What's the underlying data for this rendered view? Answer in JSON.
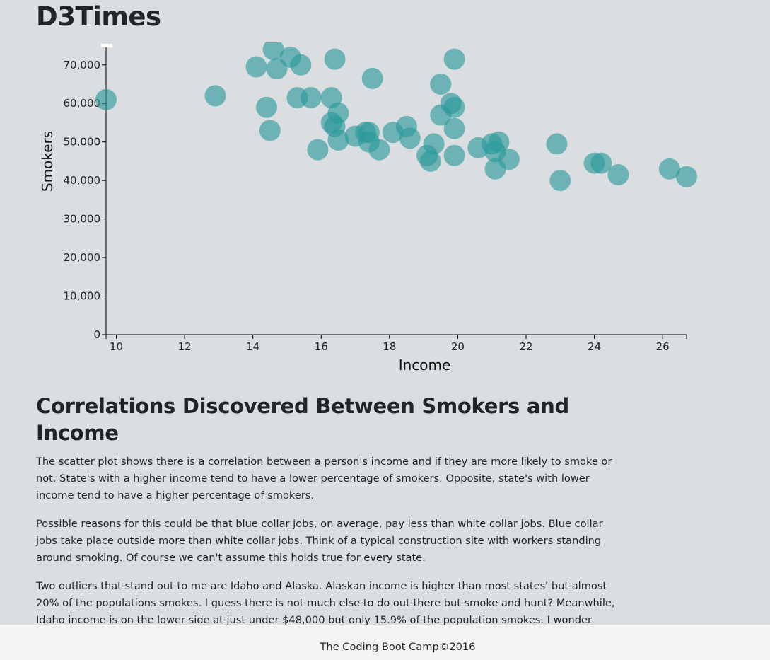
{
  "site": {
    "title": "D3Times"
  },
  "article": {
    "heading": "Correlations Discovered Between Smokers and Income",
    "paragraphs": [
      "The scatter plot shows there is a correlation between a person's income and if they are more likely to smoke or not. State's with a higher income tend to have a lower percentage of smokers. Opposite, state's with lower income tend to have a higher percentage of smokers.",
      "Possible reasons for this could be that blue collar jobs, on average, pay less than white collar jobs. Blue collar jobs take place outside more than white collar jobs. Think of a typical construction site with workers standing around smoking. Of course we can't assume this holds true for every state.",
      "Two outliers that stand out to me are Idaho and Alaska. Alaskan income is higher than most states' but almost 20% of the populations smokes. I guess there is not much else to do out there but smoke and hunt? Meanwhile, Idaho income is on the lower side at just under $48,000 but only 15.9% of the population smokes. I wonder why that is?"
    ]
  },
  "footer": {
    "text": "The Coding Boot Camp©2016"
  },
  "chart_data": {
    "type": "scatter",
    "xlabel": "Income",
    "ylabel": "Smokers",
    "xlim": [
      9.7,
      26.7
    ],
    "ylim": [
      0,
      74000
    ],
    "x_ticks": [
      10,
      12,
      14,
      16,
      18,
      20,
      22,
      24,
      26
    ],
    "y_ticks": [
      0,
      10000,
      20000,
      30000,
      40000,
      50000,
      60000,
      70000
    ],
    "x_tick_labels": [
      "10",
      "12",
      "14",
      "16",
      "18",
      "20",
      "22",
      "24",
      "26"
    ],
    "y_tick_labels": [
      "0",
      "10,000",
      "20,000",
      "30,000",
      "40,000",
      "50,000",
      "60,000",
      "70,000"
    ],
    "point_color": "#2a9a9a",
    "background_color": "#dbdee1",
    "x": [
      9.7,
      12.9,
      14.1,
      14.6,
      14.7,
      15.1,
      15.4,
      14.4,
      14.5,
      15.3,
      15.7,
      15.9,
      16.3,
      16.3,
      16.4,
      16.5,
      16.5,
      16.4,
      17.0,
      17.3,
      17.4,
      17.4,
      17.5,
      17.7,
      18.1,
      18.5,
      18.6,
      19.1,
      19.2,
      19.3,
      19.5,
      19.5,
      19.8,
      19.9,
      19.9,
      19.9,
      19.9,
      20.6,
      21.0,
      21.1,
      21.1,
      21.2,
      21.5,
      22.9,
      23.0,
      24.0,
      24.2,
      24.7,
      26.2,
      26.7
    ],
    "y": [
      61000,
      62000,
      69500,
      74000,
      69000,
      72000,
      70000,
      59000,
      53000,
      61500,
      61500,
      48000,
      61500,
      55000,
      71500,
      57500,
      50500,
      54000,
      51500,
      52500,
      52500,
      50000,
      66500,
      48000,
      52500,
      54000,
      51000,
      46500,
      45000,
      49500,
      65000,
      57000,
      60000,
      59000,
      53500,
      46500,
      71500,
      48500,
      49500,
      43000,
      47500,
      50000,
      45500,
      49500,
      40000,
      44500,
      44500,
      41500,
      43000,
      41000
    ]
  }
}
